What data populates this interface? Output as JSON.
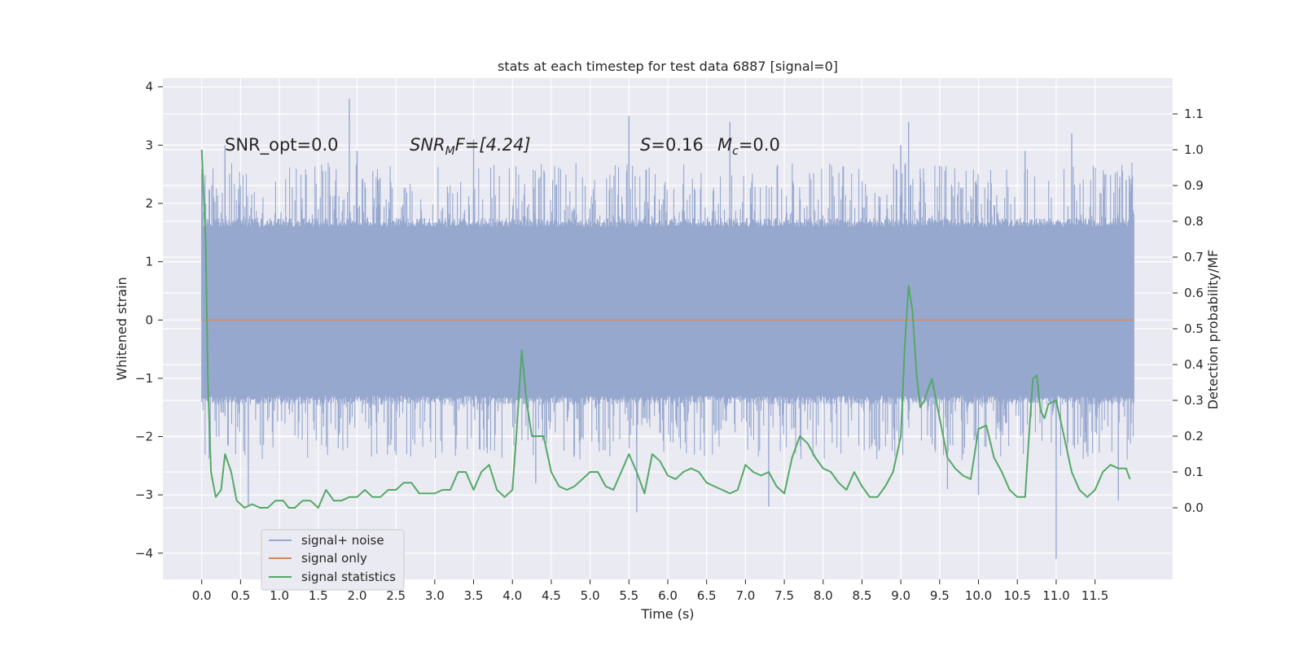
{
  "chart_data": {
    "type": "line",
    "title": "stats at each timestep for test data 6887 [signal=0]",
    "xlabel": "Time (s)",
    "ylabel": "Whitened strain",
    "y2label": "Detection probability/MF",
    "xlim": [
      -0.5,
      12.5
    ],
    "ylim": [
      -4.45,
      4.15
    ],
    "y2lim": [
      -0.2,
      1.2
    ],
    "xticks": [
      "0.0",
      "0.5",
      "1.0",
      "1.5",
      "2.0",
      "2.5",
      "3.0",
      "3.5",
      "4.0",
      "4.5",
      "5.0",
      "5.5",
      "6.0",
      "6.5",
      "7.0",
      "7.5",
      "8.0",
      "8.5",
      "9.0",
      "9.5",
      "10.0",
      "10.5",
      "11.0",
      "11.5"
    ],
    "yticks": [
      "4",
      "3",
      "2",
      "1",
      "0",
      "−1",
      "−2",
      "−3",
      "−4"
    ],
    "y2ticks": [
      "1.1",
      "1.0",
      "0.9",
      "0.8",
      "0.7",
      "0.6",
      "0.5",
      "0.4",
      "0.3",
      "0.2",
      "0.1",
      "0.0"
    ],
    "grid": true,
    "legend_position": "lower-left",
    "annotations": {
      "snr_opt": "SNR_opt=0.0",
      "snr_mf_base": "SNR",
      "snr_mf_sub": "M",
      "snr_mf_rest": "F=[4.24]",
      "s_sym": "S",
      "s_val": "=0.16",
      "mc_sym": "M",
      "mc_sub": "c",
      "mc_val": "=0.0"
    },
    "series": [
      {
        "name": "signal+ noise",
        "color": "#97a8cf",
        "kind": "noise",
        "x_range": [
          0,
          12
        ],
        "band_max": [
          1.6,
          1.7
        ],
        "band_min": [
          -1.3,
          -1.4
        ],
        "spikes_up": [
          [
            0.0,
            2.5
          ],
          [
            0.05,
            2.0
          ],
          [
            0.3,
            3.0
          ],
          [
            1.9,
            3.8
          ],
          [
            2.0,
            2.9
          ],
          [
            3.5,
            3.1
          ],
          [
            5.5,
            3.5
          ],
          [
            6.8,
            3.4
          ],
          [
            9.0,
            3.0
          ],
          [
            9.1,
            3.4
          ],
          [
            10.6,
            2.9
          ],
          [
            11.2,
            3.2
          ],
          [
            11.9,
            2.4
          ]
        ],
        "spikes_down": [
          [
            0.6,
            -3.2
          ],
          [
            4.3,
            -2.8
          ],
          [
            5.6,
            -3.3
          ],
          [
            7.3,
            -3.2
          ],
          [
            9.6,
            -2.9
          ],
          [
            10.0,
            -3.0
          ],
          [
            11.0,
            -4.1
          ],
          [
            11.8,
            -3.1
          ]
        ]
      },
      {
        "name": "signal only",
        "color": "#dd8452",
        "x": [
          0,
          12
        ],
        "y": [
          0,
          0
        ]
      },
      {
        "name": "signal statistics",
        "color": "#55a868",
        "axis": "y2",
        "x": [
          0.0,
          0.05,
          0.08,
          0.12,
          0.18,
          0.25,
          0.3,
          0.38,
          0.45,
          0.55,
          0.65,
          0.75,
          0.85,
          0.95,
          1.05,
          1.12,
          1.2,
          1.3,
          1.4,
          1.5,
          1.6,
          1.7,
          1.8,
          1.9,
          2.0,
          2.1,
          2.2,
          2.3,
          2.4,
          2.5,
          2.6,
          2.7,
          2.8,
          2.9,
          3.0,
          3.1,
          3.2,
          3.3,
          3.4,
          3.5,
          3.6,
          3.7,
          3.8,
          3.9,
          4.0,
          4.05,
          4.12,
          4.18,
          4.25,
          4.3,
          4.4,
          4.5,
          4.6,
          4.7,
          4.8,
          4.9,
          5.0,
          5.1,
          5.2,
          5.3,
          5.4,
          5.5,
          5.6,
          5.7,
          5.8,
          5.9,
          6.0,
          6.1,
          6.2,
          6.3,
          6.4,
          6.5,
          6.6,
          6.7,
          6.8,
          6.9,
          7.0,
          7.1,
          7.2,
          7.3,
          7.4,
          7.5,
          7.6,
          7.7,
          7.8,
          7.9,
          8.0,
          8.1,
          8.2,
          8.3,
          8.4,
          8.5,
          8.6,
          8.7,
          8.8,
          8.9,
          9.0,
          9.05,
          9.1,
          9.15,
          9.2,
          9.25,
          9.3,
          9.4,
          9.5,
          9.6,
          9.7,
          9.8,
          9.9,
          10.0,
          10.1,
          10.2,
          10.3,
          10.4,
          10.5,
          10.6,
          10.65,
          10.7,
          10.75,
          10.8,
          10.85,
          10.9,
          11.0,
          11.1,
          11.2,
          11.3,
          11.4,
          11.5,
          11.6,
          11.7,
          11.8,
          11.9,
          11.95
        ],
        "y": [
          1.0,
          0.75,
          0.35,
          0.1,
          0.03,
          0.05,
          0.15,
          0.1,
          0.02,
          0.0,
          0.01,
          0.0,
          0.0,
          0.02,
          0.02,
          0.0,
          0.0,
          0.02,
          0.02,
          0.0,
          0.05,
          0.02,
          0.02,
          0.03,
          0.03,
          0.05,
          0.03,
          0.03,
          0.05,
          0.05,
          0.07,
          0.07,
          0.04,
          0.04,
          0.04,
          0.05,
          0.05,
          0.1,
          0.1,
          0.05,
          0.1,
          0.12,
          0.05,
          0.03,
          0.05,
          0.2,
          0.44,
          0.3,
          0.2,
          0.2,
          0.2,
          0.1,
          0.06,
          0.05,
          0.06,
          0.08,
          0.1,
          0.1,
          0.06,
          0.05,
          0.1,
          0.15,
          0.1,
          0.04,
          0.15,
          0.13,
          0.09,
          0.08,
          0.1,
          0.11,
          0.1,
          0.07,
          0.06,
          0.05,
          0.04,
          0.05,
          0.12,
          0.1,
          0.09,
          0.1,
          0.06,
          0.04,
          0.14,
          0.2,
          0.18,
          0.14,
          0.11,
          0.1,
          0.07,
          0.05,
          0.1,
          0.06,
          0.03,
          0.03,
          0.06,
          0.1,
          0.2,
          0.45,
          0.62,
          0.55,
          0.38,
          0.28,
          0.3,
          0.36,
          0.25,
          0.14,
          0.11,
          0.09,
          0.08,
          0.22,
          0.23,
          0.14,
          0.1,
          0.05,
          0.03,
          0.03,
          0.2,
          0.36,
          0.37,
          0.27,
          0.25,
          0.29,
          0.3,
          0.2,
          0.1,
          0.05,
          0.03,
          0.05,
          0.1,
          0.12,
          0.11,
          0.11,
          0.08
        ]
      }
    ]
  },
  "colors": {
    "plot_bg": "#eaeaf2",
    "grid": "#ffffff",
    "text": "#262626"
  }
}
